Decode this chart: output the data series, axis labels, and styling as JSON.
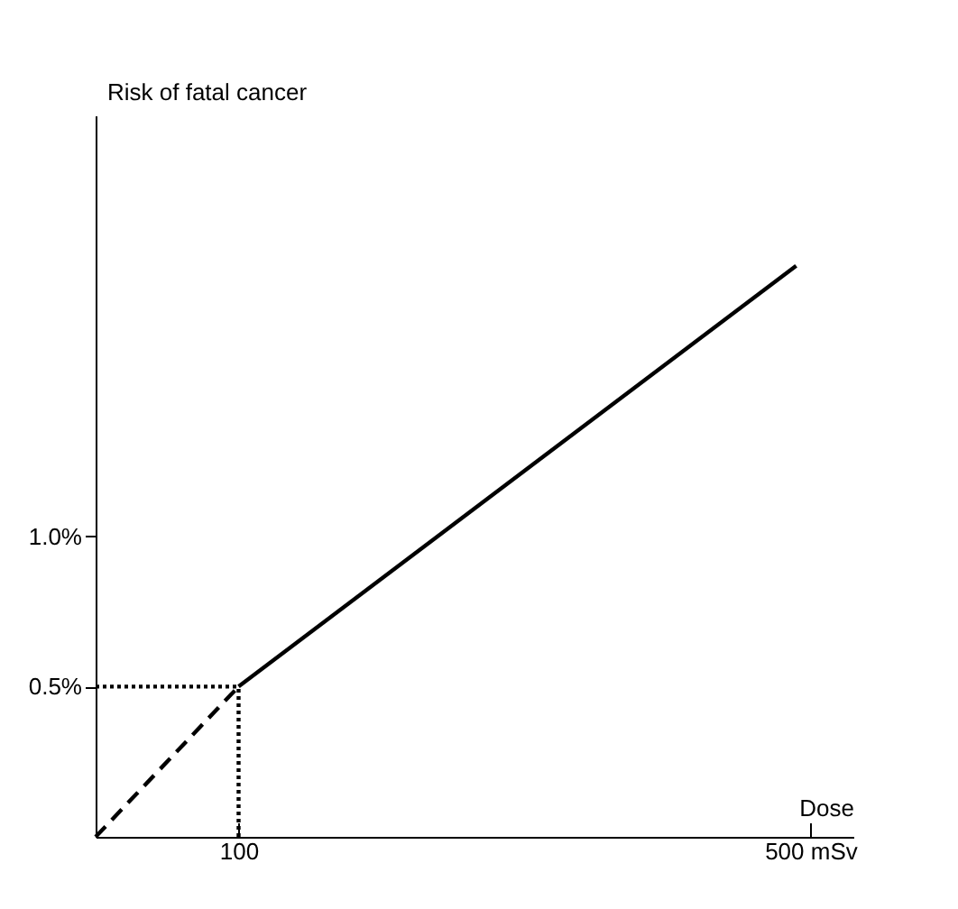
{
  "chart_data": {
    "type": "line",
    "xlabel": "Dose",
    "ylabel": "Risk of fatal cancer",
    "xlim": [
      0,
      530
    ],
    "xticks": [
      100,
      {
        "value": 500,
        "label": "500 mSv"
      }
    ],
    "ylim": [
      0,
      2.4
    ],
    "yticks": [
      {
        "value": 0.5,
        "label": "0.5%"
      },
      {
        "value": 1.0,
        "label": "1.0%"
      }
    ],
    "grid": false,
    "legend": false,
    "marker": "none",
    "series": [
      {
        "color": "#000000",
        "line_style": "solid",
        "x": [
          100,
          490
        ],
        "values": [
          0.5,
          1.9
        ]
      },
      {
        "color": "#000000",
        "line_style": "dashed",
        "x": [
          0,
          100
        ],
        "values": [
          0,
          0.5
        ]
      },
      {
        "color": "#000000",
        "line_style": "dotted",
        "x": [
          0,
          100
        ],
        "values": [
          0.5,
          0.5
        ]
      },
      {
        "color": "#000000",
        "line_style": "dotted",
        "x": [
          100,
          100
        ],
        "values": [
          0,
          0.5
        ]
      }
    ]
  }
}
